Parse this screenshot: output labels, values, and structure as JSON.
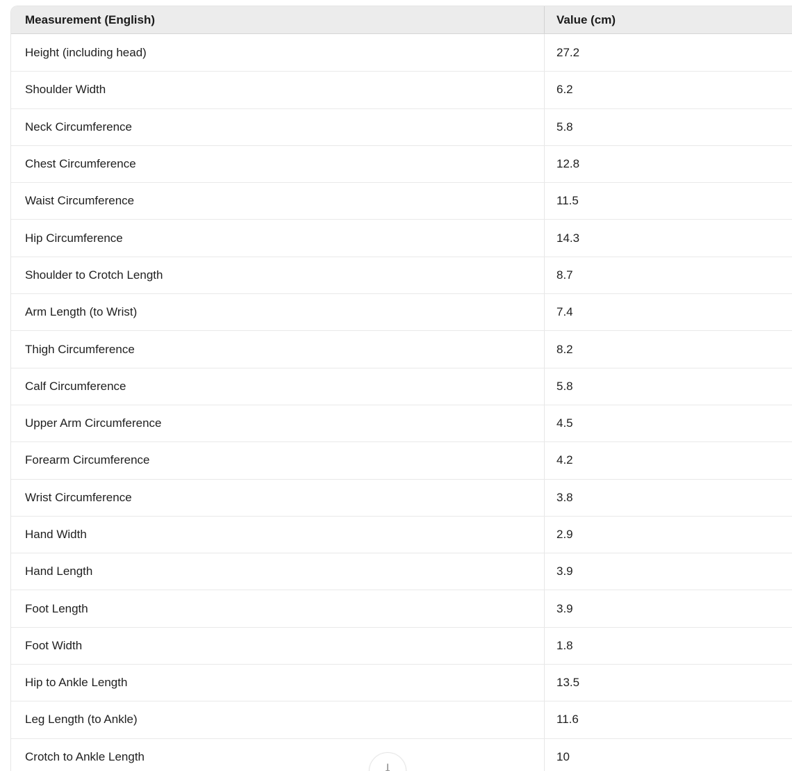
{
  "table": {
    "columns": [
      "Measurement (English)",
      "Value (cm)"
    ],
    "rows": [
      {
        "measurement": "Height (including head)",
        "value": "27.2"
      },
      {
        "measurement": "Shoulder Width",
        "value": "6.2"
      },
      {
        "measurement": "Neck Circumference",
        "value": "5.8"
      },
      {
        "measurement": "Chest Circumference",
        "value": "12.8"
      },
      {
        "measurement": "Waist Circumference",
        "value": "11.5"
      },
      {
        "measurement": "Hip Circumference",
        "value": "14.3"
      },
      {
        "measurement": "Shoulder to Crotch Length",
        "value": "8.7"
      },
      {
        "measurement": "Arm Length (to Wrist)",
        "value": "7.4"
      },
      {
        "measurement": "Thigh Circumference",
        "value": "8.2"
      },
      {
        "measurement": "Calf Circumference",
        "value": "5.8"
      },
      {
        "measurement": "Upper Arm Circumference",
        "value": "4.5"
      },
      {
        "measurement": "Forearm Circumference",
        "value": "4.2"
      },
      {
        "measurement": "Wrist Circumference",
        "value": "3.8"
      },
      {
        "measurement": "Hand Width",
        "value": "2.9"
      },
      {
        "measurement": "Hand Length",
        "value": "3.9"
      },
      {
        "measurement": "Foot Length",
        "value": "3.9"
      },
      {
        "measurement": "Foot Width",
        "value": "1.8"
      },
      {
        "measurement": "Hip to Ankle Length",
        "value": "13.5"
      },
      {
        "measurement": "Leg Length (to Ankle)",
        "value": "11.6"
      },
      {
        "measurement": "Crotch to Ankle Length",
        "value": "10"
      }
    ]
  },
  "scroll_button": {
    "icon": "arrow-down-icon",
    "glyph": "↓"
  },
  "colors": {
    "header_bg": "#ececec",
    "row_bg": "#ffffff",
    "border": "#e5e5e5",
    "row_separator": "#e9e9e9",
    "header_divider": "#d6d6d6",
    "text": "#1f1f1f"
  }
}
